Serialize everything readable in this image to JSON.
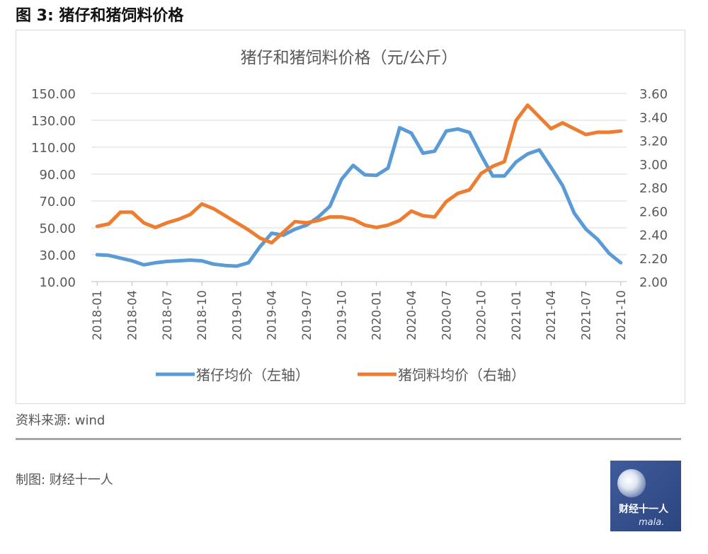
{
  "figure_title": "图 3:  猪仔和猪饲料价格",
  "source_text": "资料来源: wind",
  "credit_text": "制图: 财经十一人",
  "logo": {
    "text": "财经十一人",
    "sub": "mala."
  },
  "colors": {
    "piglet": "#5b9bd5",
    "feed": "#ed7d31",
    "grid": "#d9d9d9",
    "axis_text": "#595959"
  },
  "chart_data": {
    "type": "line",
    "title": "猪仔和猪饲料价格（元/公斤）",
    "x": [
      "2018-01",
      "2018-02",
      "2018-03",
      "2018-04",
      "2018-05",
      "2018-06",
      "2018-07",
      "2018-08",
      "2018-09",
      "2018-10",
      "2018-11",
      "2018-12",
      "2019-01",
      "2019-02",
      "2019-03",
      "2019-04",
      "2019-05",
      "2019-06",
      "2019-07",
      "2019-08",
      "2019-09",
      "2019-10",
      "2019-11",
      "2019-12",
      "2020-01",
      "2020-02",
      "2020-03",
      "2020-04",
      "2020-05",
      "2020-06",
      "2020-07",
      "2020-08",
      "2020-09",
      "2020-10",
      "2020-11",
      "2020-12",
      "2021-01",
      "2021-02",
      "2021-03",
      "2021-04",
      "2021-05",
      "2021-06",
      "2021-07",
      "2021-08",
      "2021-09",
      "2021-10"
    ],
    "x_tick_labels": [
      "2018-01",
      "2018-04",
      "2018-07",
      "2018-10",
      "2019-01",
      "2019-04",
      "2019-07",
      "2019-10",
      "2020-01",
      "2020-04",
      "2020-07",
      "2020-10",
      "2021-01",
      "2021-04",
      "2021-07",
      "2021-10"
    ],
    "y_left": {
      "min": 10,
      "max": 150,
      "ticks": [
        "10.00",
        "30.00",
        "50.00",
        "70.00",
        "90.00",
        "110.00",
        "130.00",
        "150.00"
      ]
    },
    "y_right": {
      "min": 2.0,
      "max": 3.6,
      "ticks": [
        "2.00",
        "2.20",
        "2.40",
        "2.60",
        "2.80",
        "3.00",
        "3.20",
        "3.40",
        "3.60"
      ]
    },
    "series": [
      {
        "name": "猪仔均价（左轴）",
        "axis": "left",
        "values": [
          30,
          29.5,
          27.5,
          25.5,
          22.5,
          24,
          25,
          25.5,
          26,
          25.5,
          23,
          22,
          21.5,
          24,
          36,
          46,
          44.5,
          49,
          52,
          58,
          66,
          86,
          96.5,
          89.5,
          89,
          94.5,
          124.5,
          120.5,
          105.5,
          107,
          122,
          123.5,
          121,
          104,
          88.5,
          88.5,
          99,
          105,
          108,
          95,
          81.5,
          61,
          49,
          41.5,
          31,
          24
        ]
      },
      {
        "name": "猪饲料均价（右轴）",
        "axis": "right",
        "values": [
          2.47,
          2.49,
          2.59,
          2.59,
          2.5,
          2.46,
          2.5,
          2.53,
          2.57,
          2.66,
          2.62,
          2.56,
          2.5,
          2.44,
          2.37,
          2.33,
          2.42,
          2.51,
          2.5,
          2.52,
          2.55,
          2.55,
          2.53,
          2.48,
          2.46,
          2.48,
          2.52,
          2.6,
          2.56,
          2.55,
          2.68,
          2.75,
          2.78,
          2.92,
          2.98,
          3.02,
          3.37,
          3.5,
          3.4,
          3.3,
          3.35,
          3.3,
          3.25,
          3.27,
          3.27,
          3.28
        ]
      }
    ],
    "legend_position": "bottom",
    "grid": true
  }
}
